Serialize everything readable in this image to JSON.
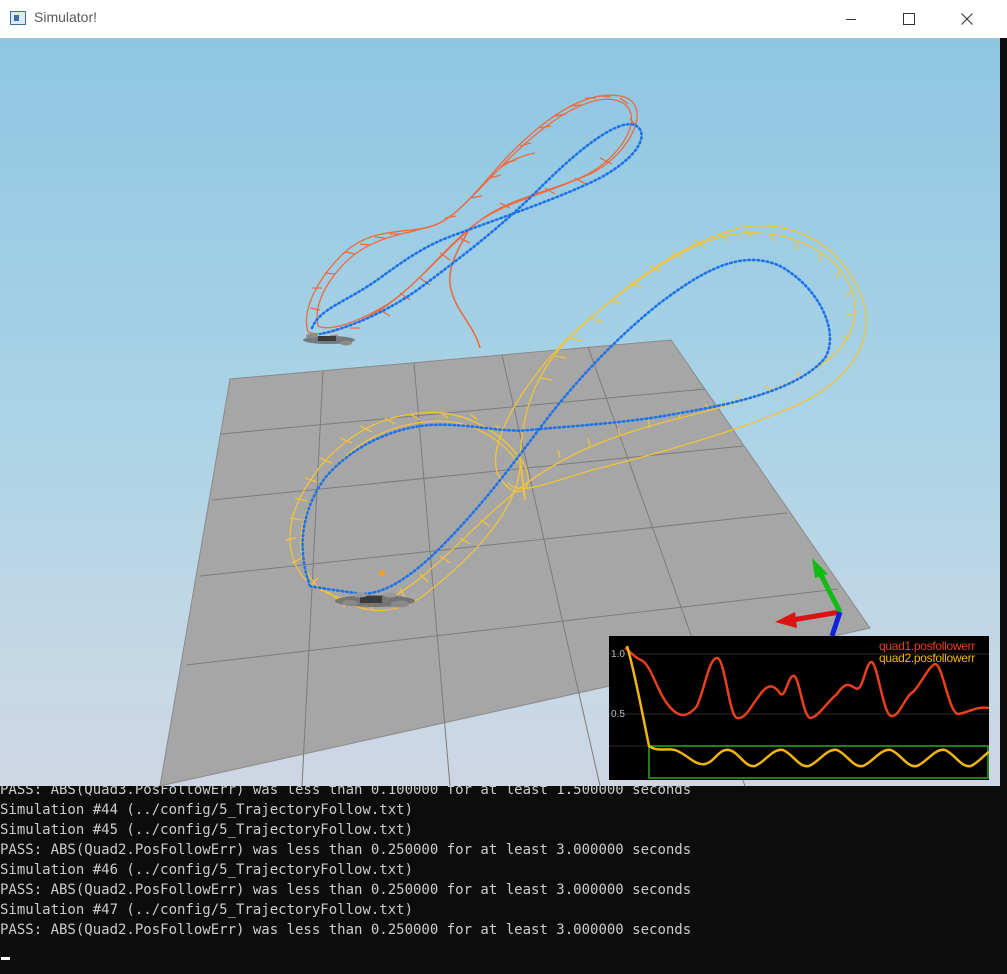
{
  "window": {
    "title": "Simulator!",
    "icon": "app-window-icon",
    "controls": [
      "minimize-icon",
      "maximize-icon",
      "close-icon"
    ]
  },
  "plot": {
    "legend": [
      "quad1.posfollowerr",
      "quad2.posfollowerr"
    ],
    "ticks": [
      "1.0",
      "0.5"
    ],
    "colors": {
      "quad1": "#e8401c",
      "quad2": "#f0b414",
      "threshold_box": "#22aa22"
    }
  },
  "scene": {
    "colors": {
      "ground": "#a3a3a3",
      "trajectory_dots": "#1f73e8",
      "quad1_trail": "#ee6a3c",
      "quad2_trail": "#f2c33a"
    }
  },
  "terminal": {
    "lines": [
      "PASS: ABS(Quad3.PosFollowErr) was less than 0.100000 for at least 1.500000 seconds",
      "Simulation #44 (../config/5_TrajectoryFollow.txt)",
      "Simulation #45 (../config/5_TrajectoryFollow.txt)",
      "PASS: ABS(Quad2.PosFollowErr) was less than 0.250000 for at least 3.000000 seconds",
      "Simulation #46 (../config/5_TrajectoryFollow.txt)",
      "PASS: ABS(Quad2.PosFollowErr) was less than 0.250000 for at least 3.000000 seconds",
      "Simulation #47 (../config/5_TrajectoryFollow.txt)",
      "PASS: ABS(Quad2.PosFollowErr) was less than 0.250000 for at least 3.000000 seconds"
    ]
  }
}
